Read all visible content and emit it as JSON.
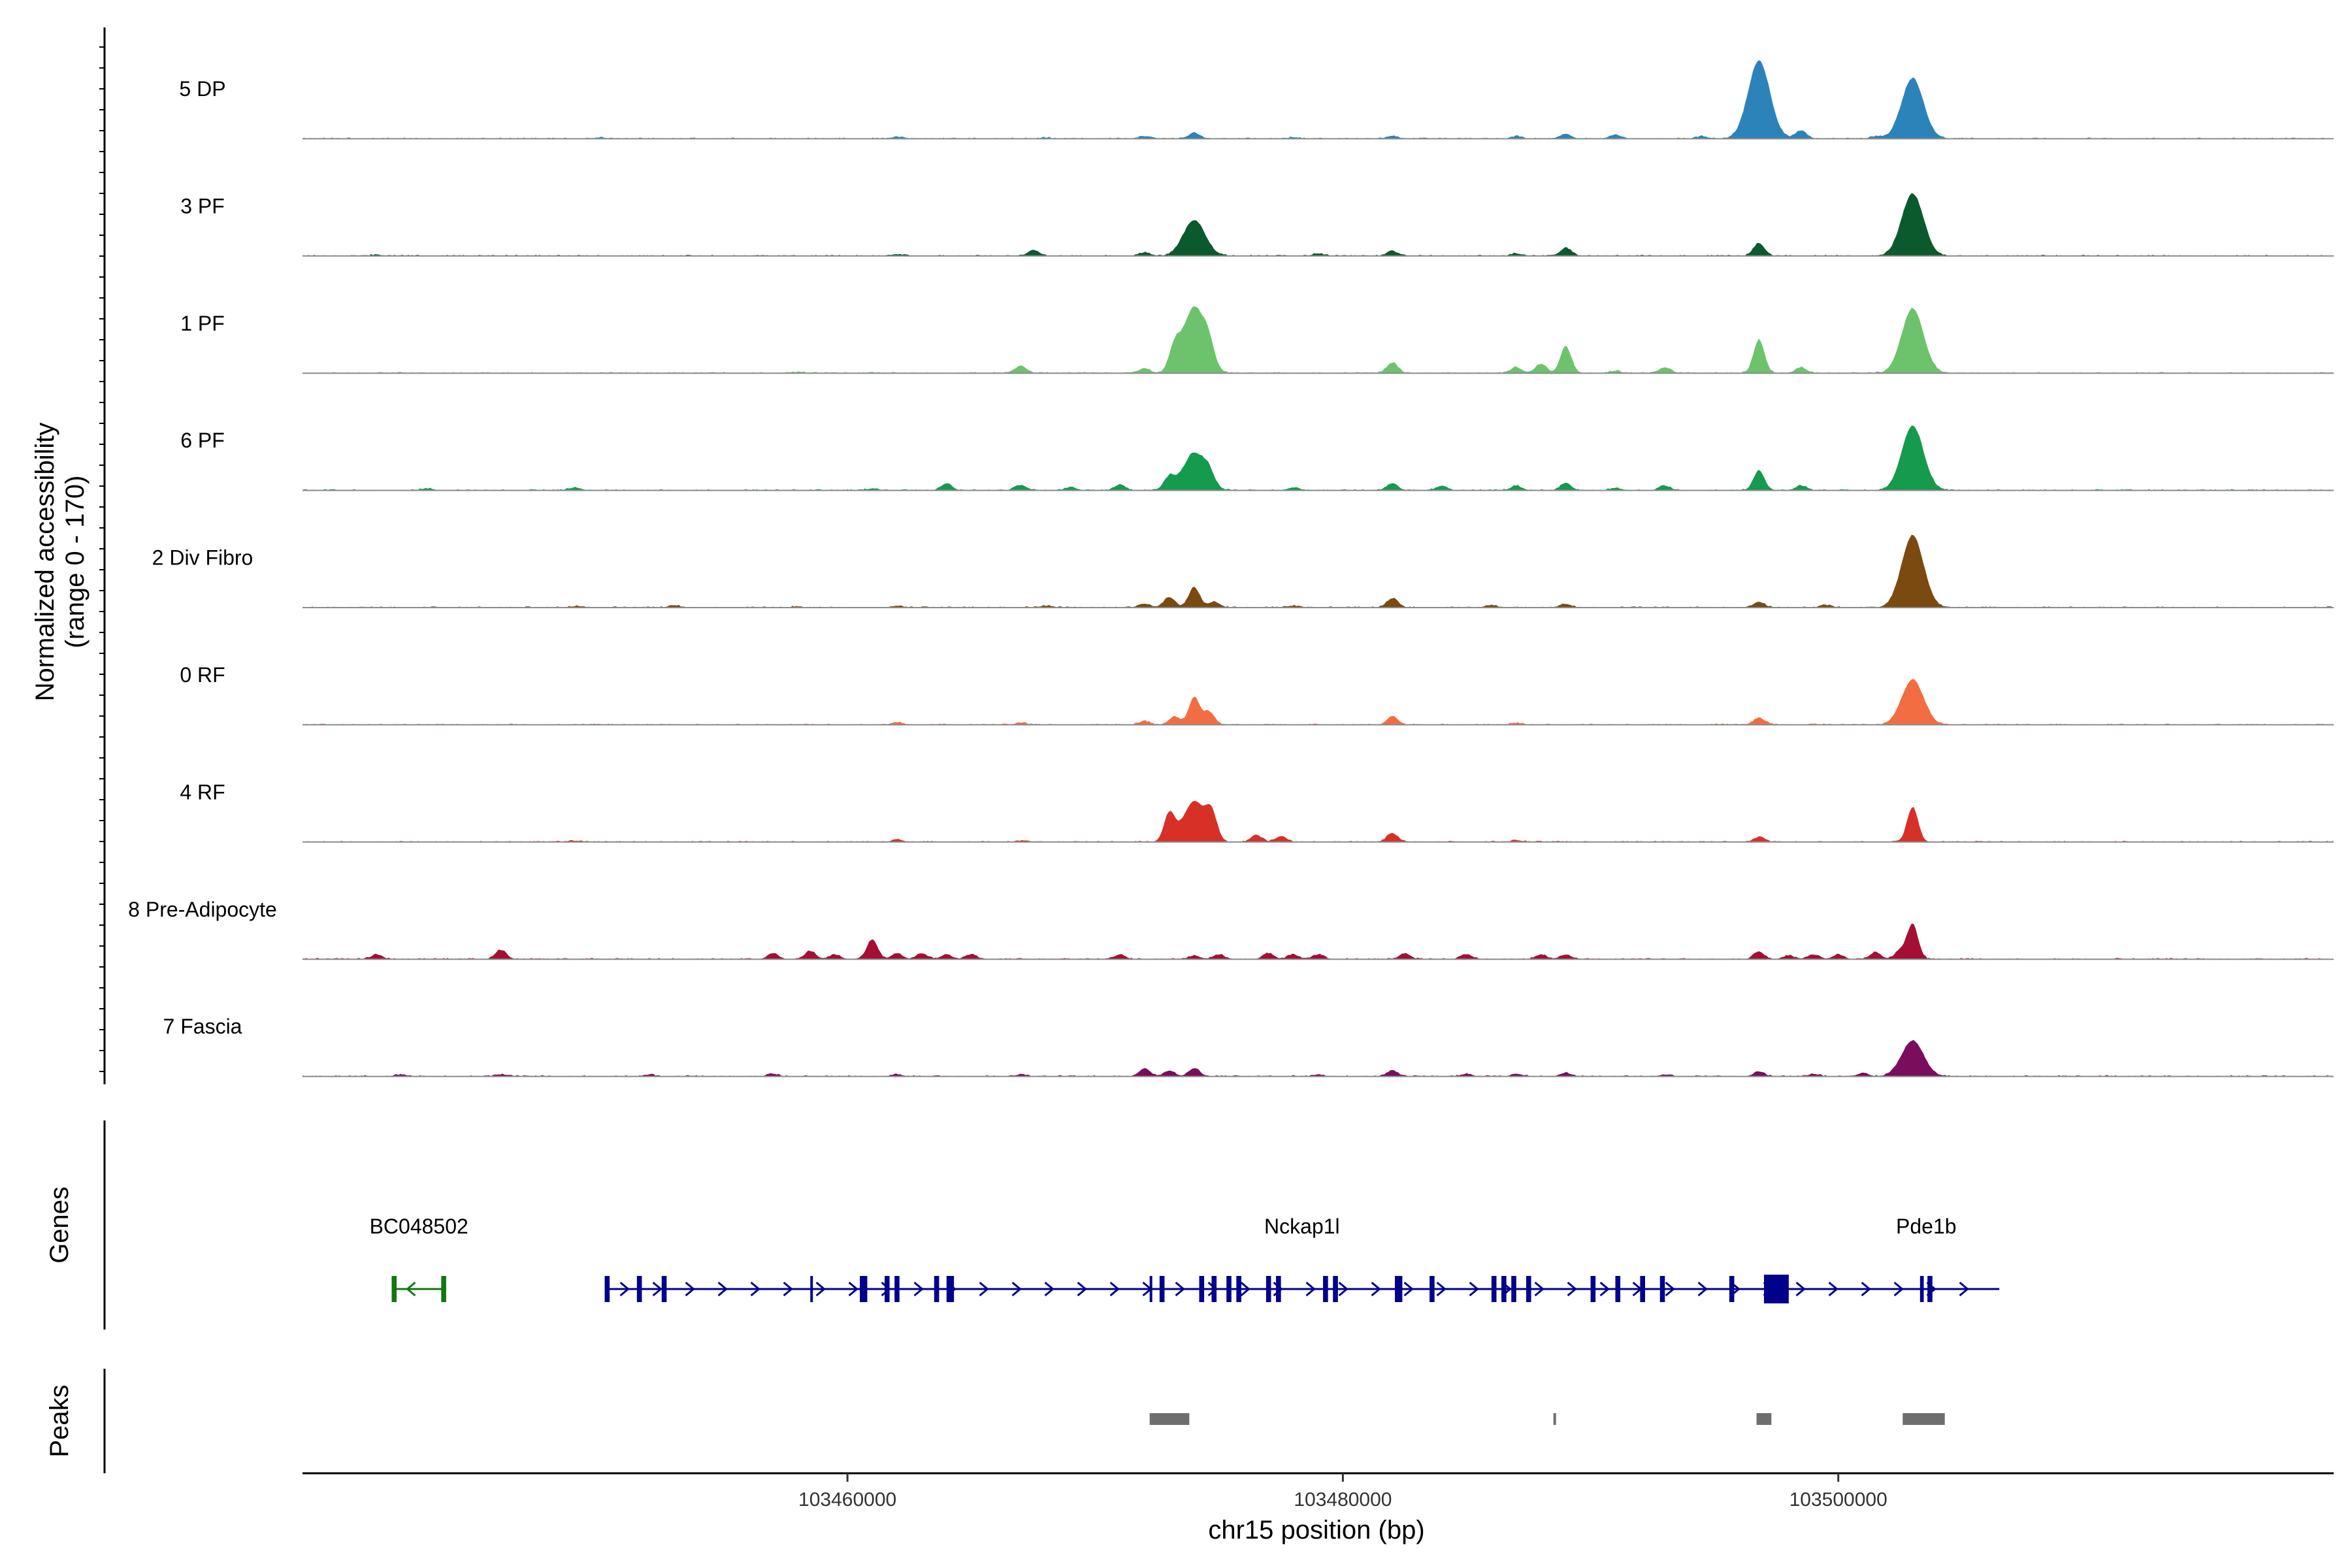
{
  "chart_data": {
    "type": "area",
    "subtype": "genome-coverage-tracks",
    "ylabel": [
      "Normalized accessibility",
      "(range 0 - 170)"
    ],
    "y_range": [
      0,
      170
    ],
    "xlabel": "chr15 position (bp)",
    "xlim": [
      103438000,
      103520000
    ],
    "x_ticks": [
      103460000,
      103480000,
      103500000
    ],
    "tracks": [
      {
        "name": "5 DP",
        "color": "#2b83ba",
        "peaks": [
          [
            103450000,
            2
          ],
          [
            103462000,
            3
          ],
          [
            103468000,
            2
          ],
          [
            103472000,
            4
          ],
          [
            103474000,
            10
          ],
          [
            103478000,
            2
          ],
          [
            103482000,
            5
          ],
          [
            103487000,
            4
          ],
          [
            103489000,
            8
          ],
          [
            103491000,
            7
          ],
          [
            103494500,
            4
          ],
          [
            103496800,
            135
          ],
          [
            103498500,
            14
          ],
          [
            103501500,
            4
          ],
          [
            103503000,
            105
          ]
        ]
      },
      {
        "name": "3 PF",
        "color": "#0b5a2e",
        "peaks": [
          [
            103441000,
            2
          ],
          [
            103462000,
            3
          ],
          [
            103467500,
            10
          ],
          [
            103472000,
            6
          ],
          [
            103474000,
            62
          ],
          [
            103479000,
            4
          ],
          [
            103482000,
            8
          ],
          [
            103487000,
            4
          ],
          [
            103489000,
            14
          ],
          [
            103496800,
            22
          ],
          [
            103503000,
            108
          ]
        ]
      },
      {
        "name": "1 PF",
        "color": "#6cc36c",
        "peaks": [
          [
            103458000,
            2
          ],
          [
            103467000,
            13
          ],
          [
            103472000,
            8
          ],
          [
            103474000,
            115
          ],
          [
            103473200,
            38
          ],
          [
            103474600,
            28
          ],
          [
            103482000,
            18
          ],
          [
            103487000,
            10
          ],
          [
            103489000,
            46
          ],
          [
            103488000,
            16
          ],
          [
            103491000,
            4
          ],
          [
            103493000,
            10
          ],
          [
            103496800,
            58
          ],
          [
            103498500,
            10
          ],
          [
            103503000,
            112
          ]
        ]
      },
      {
        "name": "6 PF",
        "color": "#169a4e",
        "peaks": [
          [
            103443000,
            3
          ],
          [
            103449000,
            5
          ],
          [
            103461000,
            3
          ],
          [
            103464000,
            12
          ],
          [
            103467000,
            9
          ],
          [
            103469000,
            5
          ],
          [
            103471000,
            10
          ],
          [
            103474000,
            65
          ],
          [
            103473000,
            22
          ],
          [
            103474600,
            20
          ],
          [
            103478000,
            5
          ],
          [
            103482000,
            12
          ],
          [
            103484000,
            8
          ],
          [
            103487000,
            8
          ],
          [
            103489000,
            12
          ],
          [
            103491000,
            4
          ],
          [
            103493000,
            8
          ],
          [
            103496800,
            34
          ],
          [
            103498500,
            8
          ],
          [
            103503000,
            112
          ]
        ]
      },
      {
        "name": "2 Div Fibro",
        "color": "#7a4a10",
        "peaks": [
          [
            103449000,
            2
          ],
          [
            103453000,
            4
          ],
          [
            103458000,
            2
          ],
          [
            103462000,
            3
          ],
          [
            103468000,
            3
          ],
          [
            103472000,
            6
          ],
          [
            103474000,
            35
          ],
          [
            103473000,
            18
          ],
          [
            103474800,
            10
          ],
          [
            103478000,
            3
          ],
          [
            103482000,
            16
          ],
          [
            103486000,
            4
          ],
          [
            103489000,
            6
          ],
          [
            103496800,
            10
          ],
          [
            103499500,
            4
          ],
          [
            103503000,
            125
          ]
        ]
      },
      {
        "name": "0 RF",
        "color": "#f26d42",
        "peaks": [
          [
            103450000,
            1
          ],
          [
            103462000,
            4
          ],
          [
            103467000,
            3
          ],
          [
            103472000,
            6
          ],
          [
            103474000,
            48
          ],
          [
            103473200,
            14
          ],
          [
            103474600,
            22
          ],
          [
            103482000,
            15
          ],
          [
            103487000,
            3
          ],
          [
            103496800,
            12
          ],
          [
            103503000,
            78
          ]
        ]
      },
      {
        "name": "4 RF",
        "color": "#d73027",
        "peaks": [
          [
            103449000,
            2
          ],
          [
            103462000,
            4
          ],
          [
            103467000,
            2
          ],
          [
            103473000,
            48
          ],
          [
            103474000,
            70
          ],
          [
            103474700,
            42
          ],
          [
            103476500,
            12
          ],
          [
            103477500,
            10
          ],
          [
            103482000,
            15
          ],
          [
            103487000,
            3
          ],
          [
            103496800,
            8
          ],
          [
            103503000,
            60
          ]
        ]
      },
      {
        "name": "8 Pre-Adipocyte",
        "color": "#a50f34",
        "peaks": [
          [
            103441000,
            8
          ],
          [
            103446000,
            16
          ],
          [
            103457000,
            10
          ],
          [
            103458500,
            14
          ],
          [
            103459500,
            8
          ],
          [
            103461000,
            34
          ],
          [
            103462000,
            10
          ],
          [
            103463000,
            10
          ],
          [
            103464000,
            8
          ],
          [
            103465000,
            8
          ],
          [
            103471000,
            8
          ],
          [
            103474000,
            6
          ],
          [
            103475000,
            8
          ],
          [
            103477000,
            10
          ],
          [
            103478000,
            8
          ],
          [
            103479000,
            8
          ],
          [
            103482500,
            10
          ],
          [
            103485000,
            8
          ],
          [
            103488000,
            8
          ],
          [
            103489000,
            8
          ],
          [
            103496800,
            12
          ],
          [
            103498000,
            6
          ],
          [
            103499000,
            8
          ],
          [
            103500000,
            8
          ],
          [
            103501500,
            12
          ],
          [
            103502500,
            14
          ],
          [
            103503000,
            60
          ]
        ]
      },
      {
        "name": "7 Fascia",
        "color": "#7a0d5c",
        "peaks": [
          [
            103442000,
            3
          ],
          [
            103446000,
            3
          ],
          [
            103452000,
            3
          ],
          [
            103457000,
            4
          ],
          [
            103462000,
            3
          ],
          [
            103467000,
            3
          ],
          [
            103472000,
            14
          ],
          [
            103473000,
            10
          ],
          [
            103474000,
            14
          ],
          [
            103479000,
            3
          ],
          [
            103482000,
            10
          ],
          [
            103485000,
            4
          ],
          [
            103487000,
            4
          ],
          [
            103489000,
            6
          ],
          [
            103493000,
            3
          ],
          [
            103496800,
            8
          ],
          [
            103499000,
            4
          ],
          [
            103501000,
            6
          ],
          [
            103503000,
            62
          ]
        ]
      }
    ],
    "genes": [
      {
        "name": "BC048502",
        "strand": "-",
        "color": "#117711",
        "start": 103441600,
        "end": 103443800,
        "exons": [
          [
            103441600,
            103441800
          ],
          [
            103443600,
            103443800
          ]
        ]
      },
      {
        "name": "Nckap1l",
        "strand": "+",
        "color": "#00008b",
        "start": 103450200,
        "end": 103506500,
        "exons": [
          [
            103450200,
            103450400
          ],
          [
            103451500,
            103451700
          ],
          [
            103452500,
            103452700
          ],
          [
            103458500,
            103458600
          ],
          [
            103460500,
            103460800
          ],
          [
            103461500,
            103461700
          ],
          [
            103461900,
            103462100
          ],
          [
            103463500,
            103463700
          ],
          [
            103464000,
            103464300
          ],
          [
            103472200,
            103472300
          ],
          [
            103472600,
            103472800
          ],
          [
            103474200,
            103474400
          ],
          [
            103474700,
            103474900
          ],
          [
            103475300,
            103475500
          ],
          [
            103475700,
            103475900
          ],
          [
            103476900,
            103477100
          ],
          [
            103477300,
            103477500
          ],
          [
            103479200,
            103479400
          ],
          [
            103479600,
            103479800
          ],
          [
            103482100,
            103482400
          ],
          [
            103483500,
            103483700
          ],
          [
            103486000,
            103486200
          ],
          [
            103486400,
            103486600
          ],
          [
            103486800,
            103487000
          ],
          [
            103487400,
            103487600
          ],
          [
            103490000,
            103490200
          ],
          [
            103491000,
            103491200
          ],
          [
            103492000,
            103492200
          ],
          [
            103492800,
            103493000
          ],
          [
            103495600,
            103495800
          ],
          [
            103497000,
            103498000
          ]
        ]
      },
      {
        "name": "Pde1b",
        "strand": "+",
        "color": "#00008b",
        "start": 103503300,
        "end": 103503800,
        "exons": [
          [
            103503300,
            103503450
          ],
          [
            103503600,
            103503800
          ]
        ]
      }
    ],
    "peaks_track": {
      "color": "#6e6e6e",
      "regions": [
        [
          103472200,
          103473800
        ],
        [
          103488500,
          103488600
        ],
        [
          103496700,
          103497300
        ],
        [
          103502600,
          103504300
        ]
      ]
    },
    "panels": [
      "Genes",
      "Peaks"
    ],
    "grid": false
  }
}
